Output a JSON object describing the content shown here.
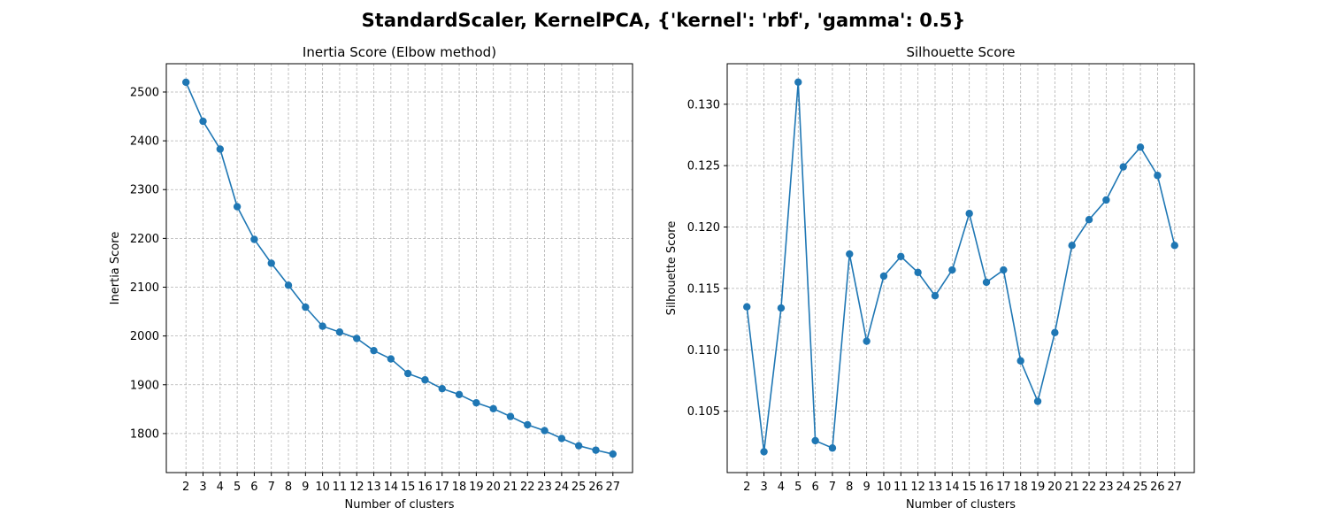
{
  "suptitle": "StandardScaler, KernelPCA, {'kernel': 'rbf', 'gamma': 0.5}",
  "chart_data": [
    {
      "type": "line",
      "title": "Inertia Score (Elbow method)",
      "xlabel": "Number of clusters",
      "ylabel": "Inertia Score",
      "x": [
        2,
        3,
        4,
        5,
        6,
        7,
        8,
        9,
        10,
        11,
        12,
        13,
        14,
        15,
        16,
        17,
        18,
        19,
        20,
        21,
        22,
        23,
        24,
        25,
        26,
        27
      ],
      "series": [
        {
          "values": [
            2520,
            2440,
            2383,
            2265,
            2198,
            2149,
            2104,
            2059,
            2020,
            2008,
            1995,
            1970,
            1953,
            1923,
            1910,
            1892,
            1880,
            1863,
            1851,
            1835,
            1818,
            1806,
            1790,
            1775,
            1766,
            1758
          ],
          "color": "#1f77b4",
          "marker": "circle"
        }
      ],
      "xlim": [
        0.85,
        28.15
      ],
      "ylim": [
        1720,
        2558
      ],
      "yticks": [
        1800,
        1900,
        2000,
        2100,
        2200,
        2300,
        2400,
        2500
      ],
      "grid": true
    },
    {
      "type": "line",
      "title": "Silhouette Score",
      "xlabel": "Number of clusters",
      "ylabel": "Silhouette Score",
      "x": [
        2,
        3,
        4,
        5,
        6,
        7,
        8,
        9,
        10,
        11,
        12,
        13,
        14,
        15,
        16,
        17,
        18,
        19,
        20,
        21,
        22,
        23,
        24,
        25,
        26,
        27
      ],
      "series": [
        {
          "values": [
            0.1135,
            0.1017,
            0.1134,
            0.1318,
            0.1026,
            0.102,
            0.1178,
            0.1107,
            0.116,
            0.1176,
            0.1163,
            0.1144,
            0.1165,
            0.1211,
            0.1155,
            0.1165,
            0.1091,
            0.1058,
            0.1114,
            0.1185,
            0.1206,
            0.1222,
            0.1249,
            0.1265,
            0.1242,
            0.1185
          ],
          "color": "#1f77b4",
          "marker": "circle"
        }
      ],
      "xlim": [
        0.85,
        28.15
      ],
      "ylim": [
        0.1,
        0.1333
      ],
      "yticks": [
        0.105,
        0.11,
        0.115,
        0.12,
        0.125,
        0.13
      ],
      "grid": true
    }
  ]
}
